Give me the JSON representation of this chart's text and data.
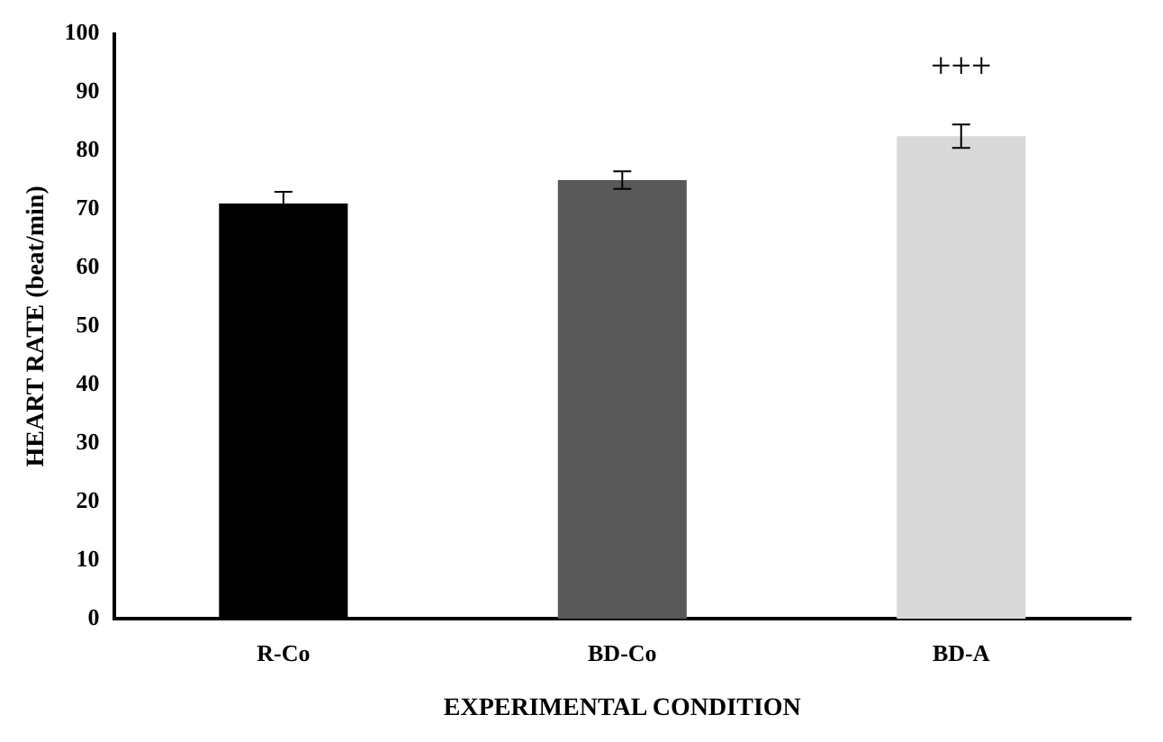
{
  "chart_data": {
    "type": "bar",
    "xlabel": "EXPERIMENTAL CONDITION",
    "ylabel": "HEART RATE (beat/min)",
    "categories": [
      "R-Co",
      "BD-Co",
      "BD-A"
    ],
    "values": [
      71,
      75,
      82.5
    ],
    "colors": [
      "#000000",
      "#595959",
      "#d9d9d9"
    ],
    "errors": [
      2,
      1.5,
      2
    ],
    "ylim": [
      0,
      100
    ],
    "yticks": [
      0,
      10,
      20,
      30,
      40,
      50,
      60,
      70,
      80,
      90,
      100
    ],
    "grid": false,
    "annotations": [
      "+++"
    ]
  }
}
